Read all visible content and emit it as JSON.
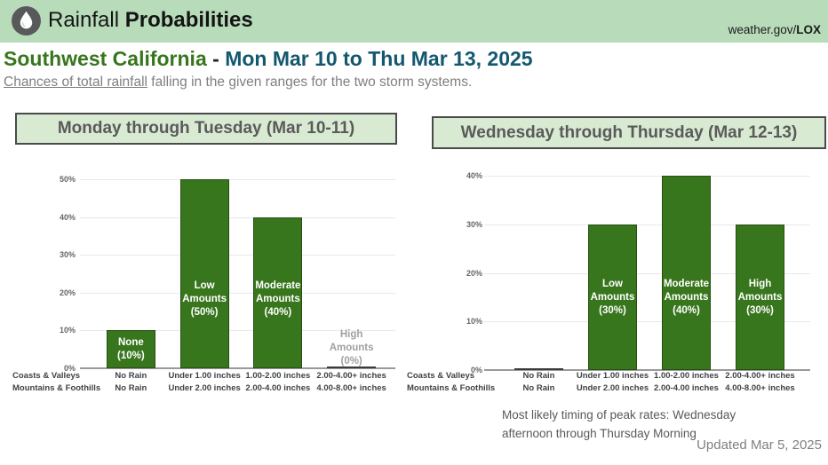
{
  "header": {
    "title_regular": "Rainfall",
    "title_bold": "Probabilities",
    "site_prefix": "weather.gov/",
    "site_bold": "LOX",
    "icon": "water-droplet-icon"
  },
  "heading": {
    "region": "Southwest California",
    "separator": " - ",
    "dates": "Mon Mar 10 to Thu Mar 13, 2025"
  },
  "subtitle": {
    "underlined": "Chances of total rainfall",
    "rest": " falling in the given ranges for the two storm systems."
  },
  "colors": {
    "header_bg": "#b8dcba",
    "panel_bg": "#d9ead3",
    "panel_border": "#4a4a4a",
    "bar_green": "#38761d",
    "bar_border": "#274e13",
    "region_green": "#38761d",
    "date_teal": "#14586f",
    "zero_bar_gray": "#3b3b3b",
    "zero_label_gray": "#a0a0a0"
  },
  "chart_data": [
    {
      "type": "bar",
      "title": "Monday through Tuesday (Mar 10-11)",
      "ylabel": "",
      "ylim": [
        0,
        50
      ],
      "ytick_step": 10,
      "ytick_suffix": "%",
      "grid": true,
      "row_headers": [
        "Coasts & Valleys",
        "Mountains & Foothills"
      ],
      "categories_row1": [
        "No Rain",
        "Under 1.00 inches",
        "1.00-2.00 inches",
        "2.00-4.00+ inches"
      ],
      "categories_row2": [
        "No Rain",
        "Under 2.00 inches",
        "2.00-4.00 inches",
        "4.00-8.00+ inches"
      ],
      "values": [
        10,
        50,
        40,
        0
      ],
      "bar_labels": [
        "None\n(10%)",
        "Low\nAmounts\n(50%)",
        "Moderate\nAmounts\n(40%)",
        "High\nAmounts\n(0%)"
      ]
    },
    {
      "type": "bar",
      "title": "Wednesday through Thursday (Mar 12-13)",
      "ylabel": "",
      "ylim": [
        0,
        40
      ],
      "ytick_step": 10,
      "ytick_suffix": "%",
      "grid": true,
      "row_headers": [
        "Coasts & Valleys",
        "Mountains & Foothills"
      ],
      "categories_row1": [
        "No Rain",
        "Under 1.00 inches",
        "1.00-2.00 inches",
        "2.00-4.00+ inches"
      ],
      "categories_row2": [
        "No Rain",
        "Under 2.00 inches",
        "2.00-4.00 inches",
        "4.00-8.00+ inches"
      ],
      "values": [
        0,
        30,
        40,
        30
      ],
      "bar_labels": [
        "",
        "Low\nAmounts\n(30%)",
        "Moderate\nAmounts\n(40%)",
        "High\nAmounts\n(30%)"
      ]
    }
  ],
  "notes": {
    "timing_line1": "Most likely timing of peak rates: Wednesday",
    "timing_line2": "afternoon through Thursday Morning",
    "updated": "Updated Mar 5, 2025"
  }
}
